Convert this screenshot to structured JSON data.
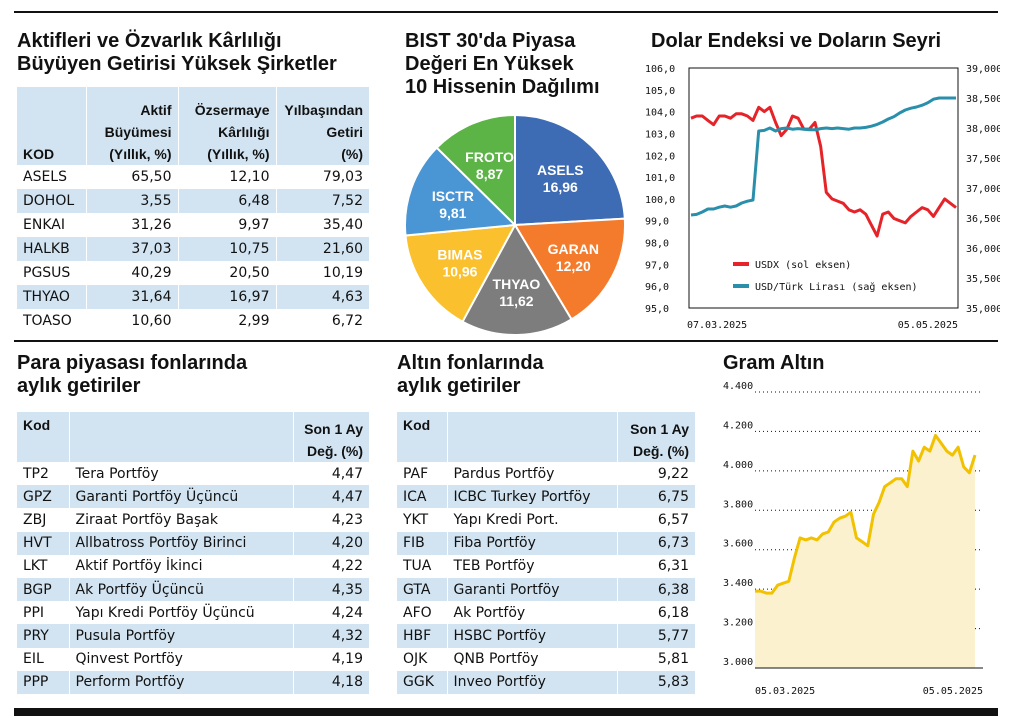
{
  "colors": {
    "band": "#d2e4f2",
    "usdx": "#e52329",
    "usdtry": "#2a8fab",
    "gold": "#f2c200",
    "goldfill": "#fbf1cf"
  },
  "sec1": {
    "title1": "Aktifleri ve Özvarlık Kârlılığı",
    "title2": "Büyüyen Getirisi Yüksek Şirketler",
    "h_kod": "KOD",
    "h1": [
      "Aktif",
      "Büyümesi",
      "(Yıllık, %)"
    ],
    "h2": [
      "Özsermaye",
      "Kârlılığı",
      "(Yıllık, %)"
    ],
    "h3": [
      "Yılbaşından",
      "Getiri",
      "(%)"
    ],
    "rows": [
      [
        "ASELS",
        "65,50",
        "12,10",
        "79,03"
      ],
      [
        "DOHOL",
        "3,55",
        "6,48",
        "7,52"
      ],
      [
        "ENKAI",
        "31,26",
        "9,97",
        "35,40"
      ],
      [
        "HALKB",
        "37,03",
        "10,75",
        "21,60"
      ],
      [
        "PGSUS",
        "40,29",
        "20,50",
        "10,19"
      ],
      [
        "THYAO",
        "31,64",
        "16,97",
        "4,63"
      ],
      [
        "TOASO",
        "10,60",
        "2,99",
        "6,72"
      ]
    ]
  },
  "pie": {
    "title1": "BIST 30'da Piyasa",
    "title2": "Değeri En Yüksek",
    "title3": "10 Hissenin Dağılımı",
    "slices": [
      {
        "name": "ASELS",
        "value": "16,96",
        "v": 16.96,
        "color": "#3d6cb4"
      },
      {
        "name": "GARAN",
        "value": "12,20",
        "v": 12.2,
        "color": "#f47b2b"
      },
      {
        "name": "THYAO",
        "value": "11,62",
        "v": 11.62,
        "color": "#7d7d7d"
      },
      {
        "name": "BIMAS",
        "value": "10,96",
        "v": 10.96,
        "color": "#fbc02d"
      },
      {
        "name": "ISCTR",
        "value": "9,81",
        "v": 9.81,
        "color": "#4a95d4"
      },
      {
        "name": "FROTO",
        "value": "8,87",
        "v": 8.87,
        "color": "#5cb346"
      }
    ]
  },
  "dollar": {
    "title": "Dolar Endeksi ve Doların Seyri",
    "left_ticks": [
      "106,0",
      "105,0",
      "104,0",
      "103,0",
      "102,0",
      "101,0",
      "100,0",
      "99,0",
      "98,0",
      "97,0",
      "96,0",
      "95,0"
    ],
    "right_ticks": [
      "39,000",
      "38,500",
      "38,000",
      "37,500",
      "37,000",
      "36,500",
      "36,000",
      "35,500",
      "35,000"
    ],
    "x_start": "07.03.2025",
    "x_end": "05.05.2025",
    "legend1": "USDX (sol eksen)",
    "legend2": "USD/Türk Lirası (sağ eksen)"
  },
  "chart_data": [
    {
      "type": "line",
      "title": "Dolar Endeksi ve Doların Seyri",
      "x_start": "07.03.2025",
      "x_end": "05.05.2025",
      "series": [
        {
          "name": "USDX (sol eksen)",
          "axis": "left",
          "ylim": [
            95,
            106
          ],
          "values": [
            103.7,
            103.8,
            103.8,
            103.6,
            103.4,
            103.8,
            103.8,
            103.7,
            103.9,
            103.9,
            103.8,
            103.6,
            104.2,
            104.0,
            104.2,
            103.5,
            102.9,
            103.2,
            103.8,
            103.7,
            103.2,
            103.2,
            103.5,
            102.4,
            100.3,
            100.0,
            99.9,
            99.8,
            99.5,
            99.4,
            99.5,
            99.3,
            98.8,
            98.3,
            99.3,
            99.4,
            99.1,
            99.0,
            98.9,
            99.2,
            99.4,
            99.6,
            99.5,
            99.2,
            99.6,
            100.0,
            99.8,
            99.6
          ]
        },
        {
          "name": "USD/Türk Lirası (sağ eksen)",
          "axis": "right",
          "ylim": [
            35000,
            39000
          ],
          "values": [
            36550,
            36560,
            36600,
            36650,
            36650,
            36680,
            36700,
            36680,
            36700,
            36750,
            36780,
            36800,
            37950,
            37960,
            38000,
            37950,
            37990,
            38000,
            37980,
            37990,
            37980,
            37970,
            37970,
            37990,
            38000,
            37990,
            38000,
            37990,
            37980,
            38000,
            38000,
            38010,
            38030,
            38060,
            38100,
            38150,
            38190,
            38250,
            38300,
            38330,
            38350,
            38380,
            38420,
            38480,
            38500,
            38500,
            38500,
            38500
          ]
        }
      ]
    },
    {
      "type": "area",
      "title": "Gram Altın",
      "x_start": "05.03.2025",
      "x_end": "05.05.2025",
      "ylim": [
        3000,
        4400
      ],
      "values": [
        3390,
        3390,
        3380,
        3380,
        3420,
        3430,
        3440,
        3560,
        3660,
        3650,
        3660,
        3650,
        3680,
        3690,
        3740,
        3760,
        3770,
        3790,
        3660,
        3640,
        3620,
        3780,
        3840,
        3920,
        3940,
        3960,
        3960,
        3920,
        4100,
        4050,
        4120,
        4100,
        4180,
        4140,
        4100,
        4080,
        4120,
        4020,
        3990,
        4080
      ],
      "ticks": [
        "4.400",
        "4.200",
        "4.000",
        "3.800",
        "3.600",
        "3.400",
        "3.200",
        "3.000"
      ]
    }
  ],
  "mm": {
    "title1": "Para piyasası fonlarında",
    "title2": "aylık getiriler",
    "h_kod": "Kod",
    "h_val1": "Son 1 Ay",
    "h_val2": "Değ. (%)",
    "rows": [
      [
        "TP2",
        "Tera Portföy",
        "4,47"
      ],
      [
        "GPZ",
        "Garanti Portföy Üçüncü",
        "4,47"
      ],
      [
        "ZBJ",
        "Ziraat Portföy Başak",
        "4,23"
      ],
      [
        "HVT",
        "Allbatross Portföy Birinci",
        "4,20"
      ],
      [
        "LKT",
        "Aktif Portföy İkinci",
        "4,22"
      ],
      [
        "BGP",
        "Ak Portföy Üçüncü",
        "4,35"
      ],
      [
        "PPI",
        "Yapı Kredi Portföy Üçüncü",
        "4,24"
      ],
      [
        "PRY",
        "Pusula Portföy",
        "4,32"
      ],
      [
        "EIL",
        "Qinvest Portföy",
        "4,19"
      ],
      [
        "PPP",
        "Perform Portföy",
        "4,18"
      ]
    ]
  },
  "gold_funds": {
    "title1": "Altın fonlarında",
    "title2": "aylık getiriler",
    "h_kod": "Kod",
    "h_val1": "Son 1 Ay",
    "h_val2": "Değ. (%)",
    "rows": [
      [
        "PAF",
        "Pardus Portföy",
        "9,22"
      ],
      [
        "ICA",
        "ICBC Turkey Portföy",
        "6,75"
      ],
      [
        "YKT",
        "Yapı Kredi Port.",
        "6,57"
      ],
      [
        "FIB",
        "Fiba Portföy",
        "6,73"
      ],
      [
        "TUA",
        "TEB Portföy",
        "6,31"
      ],
      [
        "GTA",
        "Garanti Portföy",
        "6,38"
      ],
      [
        "AFO",
        "Ak Portföy",
        "6,18"
      ],
      [
        "HBF",
        "HSBC Portföy",
        "5,77"
      ],
      [
        "OJK",
        "QNB Portföy",
        "5,81"
      ],
      [
        "GGK",
        "Inveo Portföy",
        "5,83"
      ]
    ]
  },
  "gold": {
    "title": "Gram Altın",
    "ticks": [
      "4.400",
      "4.200",
      "4.000",
      "3.800",
      "3.600",
      "3.400",
      "3.200",
      "3.000"
    ],
    "x_start": "05.03.2025",
    "x_end": "05.05.2025"
  }
}
